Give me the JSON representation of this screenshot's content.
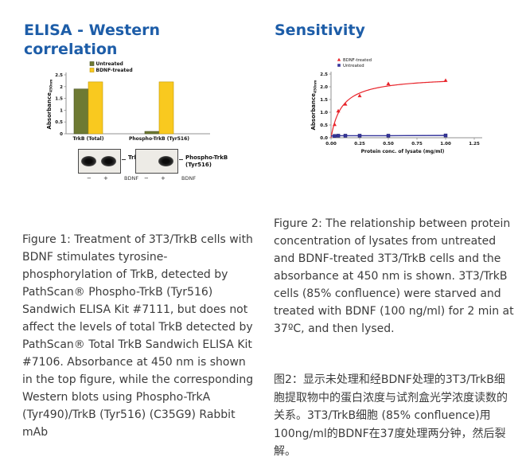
{
  "colors": {
    "heading": "#1d5da8",
    "untreated_bar": "#6e7a33",
    "bdnf_bar": "#f9c91f",
    "bdnf_line": "#e8242b",
    "untreated_line": "#35359b"
  },
  "left": {
    "heading": "ELISA - Western correlation",
    "caption": "Figure 1: Treatment of 3T3/TrkB cells with BDNF stimulates tyrosine-phosphorylation of TrkB, detected by PathScan® Phospho-TrkB (Tyr516) Sandwich ELISA Kit #7111, but does not affect the levels of total TrkB detected by PathScan® Total TrkB Sandwich ELISA Kit #7106. Absorbance at 450 nm is shown in the top figure, while the corresponding Western blots using Phospho-TrkA (Tyr490)/TrkB (Tyr516) (C35G9) Rabbit mAb",
    "blots": [
      {
        "label": "TrkB",
        "lane_minus": "−",
        "lane_plus": "+",
        "treatment": "BDNF",
        "bands": [
          "left",
          "right"
        ]
      },
      {
        "label": "Phospho-TrkB (Tyr516)",
        "lane_minus": "−",
        "lane_plus": "+",
        "treatment": "BDNF",
        "bands": [
          "right"
        ]
      }
    ]
  },
  "right": {
    "heading": "Sensitivity",
    "caption_en": "Figure 2: The relationship between protein concentration of lysates from untreated and BDNF-treated 3T3/TrkB cells and the absorbance at 450 nm is shown. 3T3/TrkB cells (85% confluence) were starved and treated with BDNF (100 ng/ml) for 2 min at 37ºC, and then lysed.",
    "caption_zh": "图2：显示未处理和经BDNF处理的3T3/TrkB细胞提取物中的蛋白浓度与试剂盒光学浓度读数的关系。3T3/TrkB细胞 (85% confluence)用100ng/ml的BDNF在37度处理两分钟，然后裂解。"
  },
  "chart_data": [
    {
      "type": "bar",
      "title": "",
      "categories": [
        "TrkB (Total)",
        "Phospho-TrkB (Tyr516)"
      ],
      "series": [
        {
          "name": "Untreated",
          "color": "#6e7a33",
          "stroke": "#454f1f",
          "values": [
            1.9,
            0.1
          ]
        },
        {
          "name": "BDNF-treated",
          "color": "#f9c91f",
          "stroke": "#bf9600",
          "values": [
            2.2,
            2.2
          ]
        }
      ],
      "xlabel": "",
      "ylabel": "Absorbance",
      "ylabel_sub": "450nm",
      "ylim": [
        0,
        2.5
      ],
      "yticks": [
        {
          "v": 0,
          "label": "0"
        },
        {
          "v": 0.5,
          "label": "0.5"
        },
        {
          "v": 1,
          "label": "1"
        },
        {
          "v": 1.5,
          "label": "1.5"
        },
        {
          "v": 2,
          "label": "2"
        },
        {
          "v": 2.5,
          "label": "2.5"
        }
      ],
      "grid": false,
      "legend_position": "top"
    },
    {
      "type": "scatter-line",
      "title": "",
      "xlabel": "Protein conc. of lysate (mg/ml)",
      "ylabel": "Absorbance",
      "ylabel_sub": "450nm",
      "xlim": [
        0,
        1.25
      ],
      "ylim": [
        0,
        2.5
      ],
      "xticks": [
        {
          "v": 0,
          "label": "0.00"
        },
        {
          "v": 0.25,
          "label": "0.25"
        },
        {
          "v": 0.5,
          "label": "0.50"
        },
        {
          "v": 0.75,
          "label": "0.75"
        },
        {
          "v": 1.0,
          "label": "1.00"
        },
        {
          "v": 1.25,
          "label": "1.25"
        }
      ],
      "yticks": [
        {
          "v": 0,
          "label": "0.0"
        },
        {
          "v": 0.5,
          "label": "0.5"
        },
        {
          "v": 1.0,
          "label": "1.0"
        },
        {
          "v": 1.5,
          "label": "1.5"
        },
        {
          "v": 2.0,
          "label": "2.0"
        },
        {
          "v": 2.5,
          "label": "2.5"
        }
      ],
      "grid": false,
      "legend_position": "top",
      "series": [
        {
          "name": "BDNF-treated",
          "color": "#e8242b",
          "marker": "triangle",
          "points": [
            [
              0.031,
              0.52
            ],
            [
              0.063,
              1.05
            ],
            [
              0.125,
              1.32
            ],
            [
              0.25,
              1.65
            ],
            [
              0.5,
              2.12
            ],
            [
              1.0,
              2.25
            ]
          ],
          "fit": {
            "type": "saturation",
            "vmax": 2.42,
            "km": 0.095,
            "xmax": 1.0
          }
        },
        {
          "name": "Untreated",
          "color": "#35359b",
          "marker": "square",
          "points": [
            [
              0.031,
              0.07
            ],
            [
              0.063,
              0.08
            ],
            [
              0.125,
              0.08
            ],
            [
              0.25,
              0.08
            ],
            [
              0.5,
              0.08
            ],
            [
              1.0,
              0.09
            ]
          ],
          "line": "straight"
        }
      ]
    }
  ]
}
